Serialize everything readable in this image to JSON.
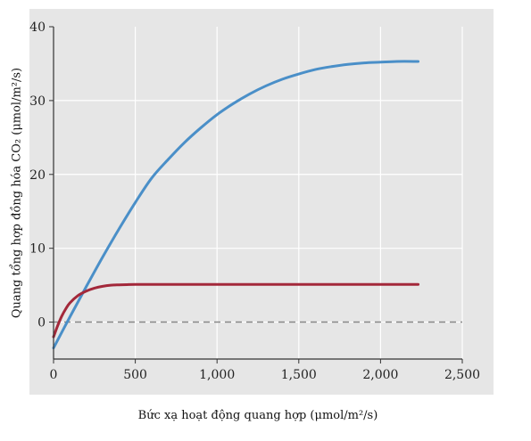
{
  "chart_data": {
    "type": "line",
    "title": "",
    "xlabel": "Bức xạ hoạt động quang hợp (μmol/m²/s)",
    "ylabel": "Quang tổng hợp đồng hóa CO₂ (μmol/m²/s)",
    "xlim": [
      0,
      2500
    ],
    "ylim": [
      -5,
      40
    ],
    "xticks": [
      0,
      500,
      1000,
      1500,
      2000,
      2500
    ],
    "xtick_labels": [
      "0",
      "500",
      "1,000",
      "1,500",
      "2,000",
      "2,500"
    ],
    "yticks": [
      0,
      10,
      20,
      30,
      40
    ],
    "ytick_labels": [
      "0",
      "10",
      "20",
      "30",
      "40"
    ],
    "grid": true,
    "legend": "none",
    "background_color": "#e6e6e6",
    "reference_line": {
      "y": 0,
      "style": "dashed",
      "color": "#888888"
    },
    "series": [
      {
        "color": "#4a8fc8",
        "x": [
          0,
          100,
          200,
          300,
          400,
          500,
          600,
          700,
          800,
          900,
          1000,
          1100,
          1200,
          1300,
          1400,
          1500,
          1600,
          1700,
          1800,
          1900,
          2000,
          2100,
          2230
        ],
        "y": [
          -3.5,
          0.7,
          4.8,
          8.8,
          12.6,
          16.2,
          19.5,
          22.0,
          24.3,
          26.3,
          28.1,
          29.6,
          30.9,
          32.0,
          32.9,
          33.6,
          34.2,
          34.6,
          34.9,
          35.1,
          35.2,
          35.3,
          35.3
        ]
      },
      {
        "color": "#a3283a",
        "x": [
          0,
          25,
          50,
          75,
          100,
          150,
          200,
          250,
          300,
          350,
          400,
          450,
          500,
          700,
          1000,
          1500,
          2000,
          2230
        ],
        "y": [
          -2.0,
          -0.5,
          0.8,
          1.8,
          2.6,
          3.6,
          4.2,
          4.6,
          4.85,
          5.0,
          5.05,
          5.08,
          5.1,
          5.1,
          5.1,
          5.1,
          5.1,
          5.1
        ]
      }
    ]
  }
}
